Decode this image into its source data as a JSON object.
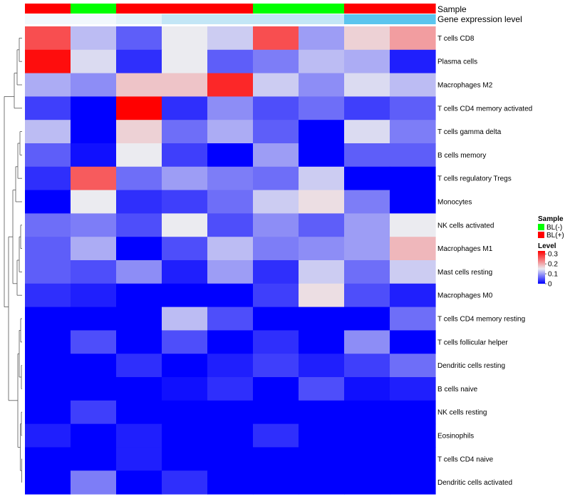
{
  "chart_data": {
    "type": "heatmap",
    "rows": [
      "T cells CD8",
      "Plasma cells",
      "Macrophages M2",
      "T cells CD4 memory activated",
      "T cells gamma delta",
      "B cells memory",
      "T cells regulatory  Tregs",
      "Monocytes",
      "NK cells activated",
      "Macrophages M1",
      "Mast cells resting",
      "Macrophages M0",
      "T cells CD4 memory resting",
      "T cells follicular helper",
      "Dendritic cells resting",
      "B cells naive",
      "NK cells resting",
      "Eosinophils",
      "T cells CD4 naive",
      "Dendritic cells activated"
    ],
    "n_columns": 9,
    "values": [
      [
        0.27,
        0.12,
        0.06,
        0.15,
        0.13,
        0.27,
        0.1,
        0.17,
        0.21
      ],
      [
        0.32,
        0.14,
        0.03,
        0.15,
        0.06,
        0.08,
        0.12,
        0.11,
        0.02
      ],
      [
        0.11,
        0.09,
        0.18,
        0.18,
        0.3,
        0.13,
        0.09,
        0.14,
        0.12
      ],
      [
        0.04,
        0.0,
        0.33,
        0.03,
        0.09,
        0.05,
        0.07,
        0.04,
        0.06
      ],
      [
        0.12,
        0.0,
        0.17,
        0.07,
        0.11,
        0.06,
        0.0,
        0.14,
        0.08
      ],
      [
        0.06,
        0.01,
        0.15,
        0.04,
        0.0,
        0.1,
        0.0,
        0.06,
        0.06
      ],
      [
        0.03,
        0.26,
        0.07,
        0.1,
        0.08,
        0.07,
        0.13,
        0.0,
        0.0
      ],
      [
        0.0,
        0.15,
        0.03,
        0.04,
        0.07,
        0.13,
        0.16,
        0.08,
        0.0
      ],
      [
        0.07,
        0.08,
        0.05,
        0.15,
        0.05,
        0.09,
        0.06,
        0.1,
        0.15
      ],
      [
        0.06,
        0.11,
        0.0,
        0.05,
        0.12,
        0.08,
        0.09,
        0.1,
        0.19
      ],
      [
        0.06,
        0.05,
        0.09,
        0.02,
        0.1,
        0.03,
        0.13,
        0.07,
        0.13
      ],
      [
        0.03,
        0.02,
        0.0,
        0.0,
        0.0,
        0.04,
        0.16,
        0.05,
        0.02
      ],
      [
        0.0,
        0.0,
        0.0,
        0.12,
        0.05,
        0.0,
        0.0,
        0.0,
        0.07
      ],
      [
        0.0,
        0.05,
        0.0,
        0.05,
        0.0,
        0.03,
        0.0,
        0.09,
        0.0
      ],
      [
        0.0,
        0.0,
        0.03,
        0.0,
        0.02,
        0.04,
        0.02,
        0.04,
        0.07
      ],
      [
        0.0,
        0.0,
        0.0,
        0.01,
        0.03,
        0.0,
        0.05,
        0.01,
        0.02
      ],
      [
        0.0,
        0.04,
        0.0,
        0.0,
        0.0,
        0.0,
        0.0,
        0.0,
        0.0
      ],
      [
        0.02,
        0.0,
        0.02,
        0.0,
        0.0,
        0.03,
        0.0,
        0.0,
        0.0
      ],
      [
        0.0,
        0.0,
        0.02,
        0.0,
        0.0,
        0.0,
        0.0,
        0.0,
        0.0
      ],
      [
        0.0,
        0.08,
        0.0,
        0.03,
        0.0,
        0.0,
        0.0,
        0.0,
        0.0
      ]
    ],
    "column_annotations": {
      "sample": {
        "label": "Sample",
        "values": [
          "BL(+)",
          "BL(-)",
          "BL(+)",
          "BL(+)",
          "BL(+)",
          "BL(-)",
          "BL(-)",
          "BL(+)",
          "BL(+)"
        ]
      },
      "gene_expression_level": {
        "label": "Gene expression level",
        "values": [
          "very low",
          "very low",
          "low",
          "moderate",
          "moderate",
          "moderate",
          "moderate",
          "high",
          "high"
        ],
        "colors": {
          "very low": "#f2f8fc",
          "low": "#e3f2fa",
          "moderate": "#c3e6f6",
          "high": "#5bc5ee"
        }
      }
    },
    "legends": [
      {
        "title": "Sample",
        "entries": [
          {
            "label": "BL(-)",
            "color": "#00ff00"
          },
          {
            "label": "BL(+)",
            "color": "#ff0000"
          }
        ]
      },
      {
        "title": "Level",
        "type": "continuous",
        "range": [
          0,
          0.33
        ],
        "ticks": [
          {
            "value": 0.3,
            "label": "0.3"
          },
          {
            "value": 0.2,
            "label": "0.2"
          },
          {
            "value": 0.1,
            "label": "0.1"
          },
          {
            "value": 0.0,
            "label": "0"
          }
        ],
        "colors": {
          "low": "#0000ff",
          "mid": "#ebebf0",
          "high": "#ff0000"
        },
        "mid_value": 0.15
      }
    ],
    "colors": {
      "BL(+)": "#ff0000",
      "BL(-)": "#00ff00"
    },
    "row_dendrogram": true,
    "column_dendrogram": false
  }
}
